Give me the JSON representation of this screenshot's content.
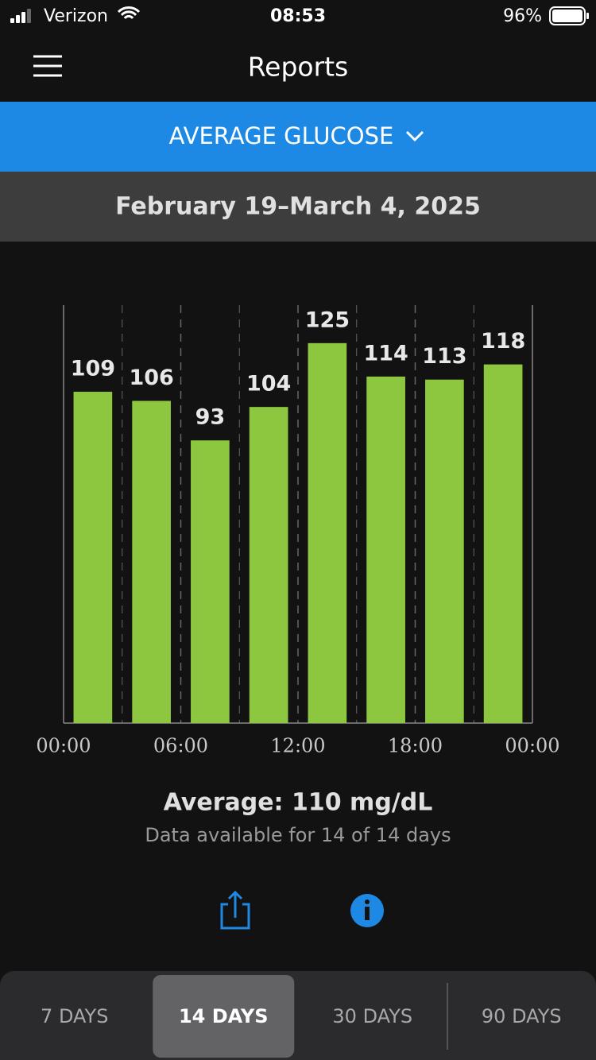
{
  "status_bar": {
    "carrier": "Verizon",
    "time": "08:53",
    "battery": "96%"
  },
  "header": {
    "title": "Reports"
  },
  "report_selector": {
    "label": "AVERAGE GLUCOSE"
  },
  "date_range": "February 19–March 4, 2025",
  "chart_data": {
    "type": "bar",
    "x": [
      1.5,
      4.5,
      7.5,
      10.5,
      13.5,
      16.5,
      19.5,
      22.5
    ],
    "values": [
      109,
      106,
      93,
      104,
      125,
      114,
      113,
      118
    ],
    "color": "#8dc63f",
    "xlim": [
      0,
      24
    ],
    "xticks": [
      {
        "value": 0,
        "label": "00:00"
      },
      {
        "value": 6,
        "label": "06:00"
      },
      {
        "value": 12,
        "label": "12:00"
      },
      {
        "value": 18,
        "label": "18:00"
      },
      {
        "value": 24,
        "label": "00:00"
      }
    ],
    "ylim": [
      0,
      137.5
    ]
  },
  "summary": {
    "average": "Average: 110 mg/dL",
    "availability": "Data available for 14 of 14 days"
  },
  "tabs": {
    "items": [
      "7 DAYS",
      "14 DAYS",
      "30 DAYS",
      "90 DAYS"
    ],
    "selected": 1
  }
}
